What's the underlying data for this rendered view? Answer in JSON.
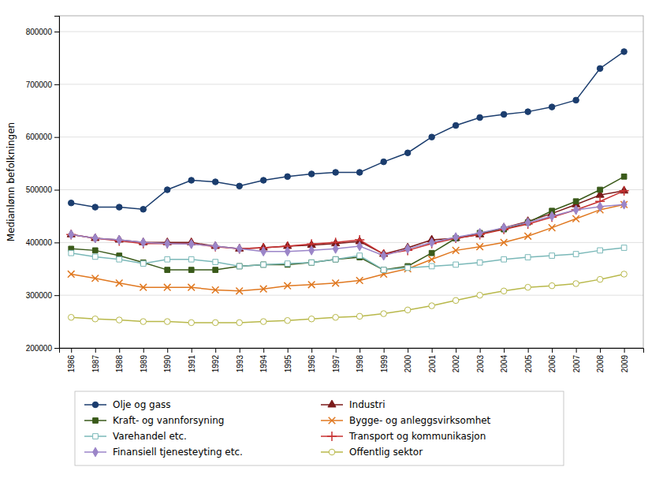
{
  "chart_data": {
    "type": "line",
    "ylabel": "Medianlønn befolkningen",
    "x": [
      1986,
      1987,
      1988,
      1989,
      1990,
      1991,
      1992,
      1993,
      1994,
      1995,
      1996,
      1997,
      1998,
      1999,
      2000,
      2001,
      2002,
      2003,
      2004,
      2005,
      2006,
      2007,
      2008,
      2009
    ],
    "xlim": [
      1985.5,
      2009.8
    ],
    "xticks": [
      1986,
      1987,
      1988,
      1989,
      1990,
      1991,
      1992,
      1993,
      1994,
      1995,
      1996,
      1997,
      1998,
      1999,
      2000,
      2001,
      2002,
      2003,
      2004,
      2005,
      2006,
      2007,
      2008,
      2009
    ],
    "ylim": [
      200000,
      830000
    ],
    "yticks": [
      200000,
      300000,
      400000,
      500000,
      600000,
      700000,
      800000
    ],
    "grid": "y",
    "series": [
      {
        "name": "Olje og gass",
        "color": "#1b3d6e",
        "marker": "circle",
        "values": [
          475000,
          467000,
          467000,
          463000,
          500000,
          518000,
          515000,
          507000,
          518000,
          525000,
          530000,
          533000,
          533000,
          553000,
          570000,
          600000,
          622000,
          637000,
          643000,
          648000,
          657000,
          670000,
          730000,
          762000
        ]
      },
      {
        "name": "Industri",
        "color": "#7b1a1a",
        "marker": "triangle",
        "values": [
          415000,
          408000,
          405000,
          400000,
          400000,
          400000,
          393000,
          388000,
          390000,
          393000,
          395000,
          398000,
          402000,
          378000,
          390000,
          405000,
          408000,
          415000,
          428000,
          440000,
          455000,
          472000,
          490000,
          498000
        ]
      },
      {
        "name": "Kraft- og vannforsyning",
        "color": "#3a5a1a",
        "marker": "square",
        "values": [
          388000,
          385000,
          375000,
          362000,
          348000,
          348000,
          348000,
          355000,
          358000,
          358000,
          362000,
          368000,
          372000,
          348000,
          355000,
          380000,
          408000,
          418000,
          425000,
          438000,
          460000,
          478000,
          500000,
          525000
        ]
      },
      {
        "name": "Bygge- og anleggsvirksomhet",
        "color": "#e07820",
        "marker": "x",
        "values": [
          340000,
          332000,
          323000,
          315000,
          315000,
          315000,
          310000,
          308000,
          312000,
          318000,
          320000,
          323000,
          328000,
          340000,
          350000,
          368000,
          385000,
          392000,
          400000,
          412000,
          428000,
          445000,
          462000,
          472000
        ]
      },
      {
        "name": "Varehandel etc.",
        "color": "#7ab8b8",
        "marker": "square-open",
        "values": [
          380000,
          373000,
          368000,
          360000,
          368000,
          368000,
          363000,
          355000,
          358000,
          360000,
          362000,
          368000,
          375000,
          348000,
          352000,
          355000,
          358000,
          362000,
          368000,
          372000,
          375000,
          378000,
          385000,
          390000
        ]
      },
      {
        "name": "Transport og kommunikasjon",
        "color": "#c83232",
        "marker": "plus",
        "values": [
          415000,
          408000,
          403000,
          398000,
          398000,
          398000,
          392000,
          388000,
          390000,
          393000,
          397000,
          400000,
          405000,
          378000,
          385000,
          398000,
          408000,
          415000,
          425000,
          435000,
          448000,
          462000,
          478000,
          498000
        ]
      },
      {
        "name": "Finansiell tjenesteyting etc.",
        "color": "#9b85c8",
        "marker": "diamond",
        "values": [
          415000,
          408000,
          405000,
          400000,
          398000,
          397000,
          393000,
          388000,
          383000,
          383000,
          385000,
          388000,
          393000,
          375000,
          388000,
          400000,
          410000,
          418000,
          428000,
          438000,
          450000,
          462000,
          468000,
          472000
        ]
      },
      {
        "name": "Offentlig sektor",
        "color": "#b8b84a",
        "marker": "circle-open",
        "values": [
          258000,
          255000,
          253000,
          250000,
          250000,
          248000,
          248000,
          248000,
          250000,
          252000,
          255000,
          258000,
          260000,
          265000,
          272000,
          280000,
          290000,
          300000,
          308000,
          315000,
          318000,
          322000,
          330000,
          340000
        ]
      }
    ]
  }
}
